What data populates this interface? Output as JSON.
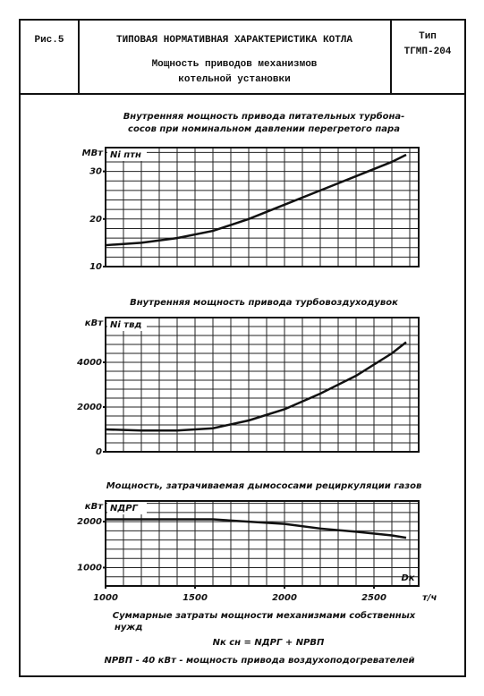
{
  "header": {
    "figure": "Рис.5",
    "title": [
      "ТИПОВАЯ НОРМАТИВНАЯ ХАРАКТЕРИСТИКА КОТЛА",
      "Мощность приводов механизмов",
      "котельной установки"
    ],
    "type_label": "Тип",
    "type_value": "ТГМП-204"
  },
  "chart_data": [
    {
      "type": "line",
      "title": [
        "Внутренняя мощность привода питательных турбона-",
        "сосов при номинальном давлении перегретого пара"
      ],
      "ylabel": "МВт",
      "x": [
        1000,
        1200,
        1400,
        1600,
        1800,
        2000,
        2200,
        2400,
        2600,
        2680
      ],
      "series": [
        {
          "name": "Ni птн",
          "color": "#111111",
          "values": [
            14.5,
            15,
            16,
            17.5,
            20,
            23,
            26,
            29,
            32,
            33.5
          ]
        }
      ],
      "xlim": [
        1000,
        2750
      ],
      "ylim": [
        10,
        35
      ],
      "yticks": [
        10,
        20,
        30
      ],
      "grid": true,
      "xgrid_step": 100,
      "ygrid_step": 2
    },
    {
      "type": "line",
      "title": [
        "Внутренняя мощность привода турбовоздуходувок"
      ],
      "ylabel": "кВт",
      "x": [
        1000,
        1200,
        1400,
        1600,
        1800,
        2000,
        2200,
        2400,
        2600,
        2680
      ],
      "series": [
        {
          "name": "Ni твд",
          "color": "#111111",
          "values": [
            1000,
            950,
            950,
            1050,
            1400,
            1900,
            2600,
            3400,
            4400,
            4900
          ]
        }
      ],
      "xlim": [
        1000,
        2750
      ],
      "ylim": [
        0,
        6000
      ],
      "yticks": [
        0,
        2000,
        4000
      ],
      "grid": true,
      "xgrid_step": 100,
      "ygrid_step": 400
    },
    {
      "type": "line",
      "title": [
        "Мощность, затрачиваемая дымососами рециркуляции газов"
      ],
      "ylabel": "кВт",
      "x": [
        1000,
        1200,
        1400,
        1600,
        1800,
        2000,
        2200,
        2400,
        2600,
        2680
      ],
      "series": [
        {
          "name": "NДРГ",
          "color": "#111111",
          "values": [
            2050,
            2050,
            2050,
            2050,
            2000,
            1950,
            1850,
            1780,
            1700,
            1650
          ]
        }
      ],
      "xlim": [
        1000,
        2750
      ],
      "ylim": [
        600,
        2450
      ],
      "yticks": [
        1000,
        2000
      ],
      "xticks": [
        1000,
        1500,
        2000,
        2500
      ],
      "xlabel": "т/ч",
      "annotation": "Dк",
      "grid": true,
      "xgrid_step": 100,
      "ygrid_step": 200
    }
  ],
  "footer": [
    "Суммарные затраты мощности механизмами собственных",
    "нужд",
    "Nк сн = NДРГ + NРВП",
    "NРВП - 40 кВт - мощность привода воздухоподогревателей"
  ]
}
